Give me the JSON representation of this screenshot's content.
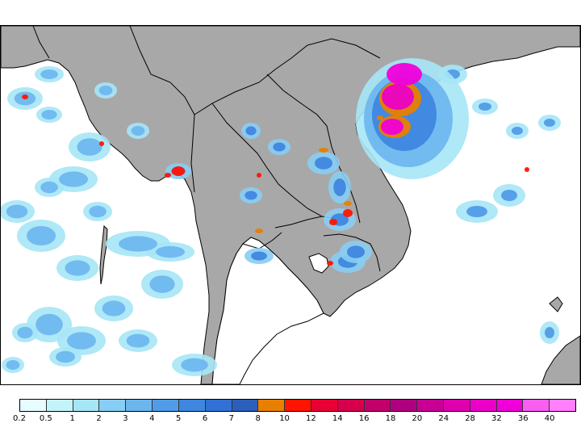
{
  "legend": {
    "labels": [
      "0.2",
      "0.5",
      "1",
      "2",
      "3",
      "4",
      "5",
      "6",
      "7",
      "8",
      "10",
      "12",
      "14",
      "16",
      "18",
      "20",
      "24",
      "28",
      "32",
      "36",
      "40"
    ],
    "colors": [
      "#e6fcff",
      "#c4f4fb",
      "#a6e6f6",
      "#88cdf3",
      "#6cb6ee",
      "#519ce8",
      "#3f86df",
      "#3171d5",
      "#2b5fbb",
      "#e77f00",
      "#ff1400",
      "#e80034",
      "#d6004c",
      "#c2006b",
      "#b0007f",
      "#c80096",
      "#df00ad",
      "#ea00c6",
      "#f000d9",
      "#f85ff0",
      "#ff7fff"
    ]
  },
  "palette": {
    "land": "#a8a8a8",
    "water": "#ffffff",
    "border": "#000000"
  }
}
